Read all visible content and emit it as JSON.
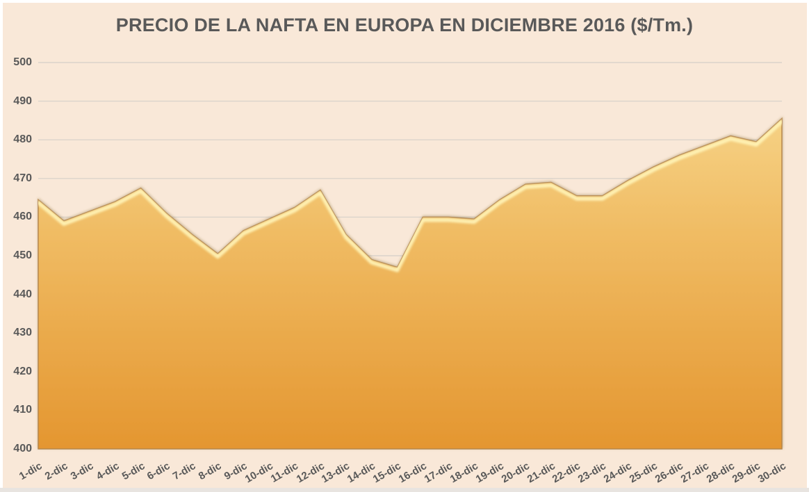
{
  "chart_data": {
    "type": "area",
    "title": "PRECIO DE LA NAFTA EN EUROPA EN DICIEMBRE 2016 ($/Tm.)",
    "categories": [
      "1-dic",
      "2-dic",
      "3-dic",
      "4-dic",
      "5-dic",
      "6-dic",
      "7-dic",
      "8-dic",
      "9-dic",
      "10-dic",
      "11-dic",
      "12-dic",
      "13-dic",
      "14-dic",
      "15-dic",
      "16-dic",
      "17-dic",
      "18-dic",
      "19-dic",
      "20-dic",
      "21-dic",
      "22-dic",
      "23-dic",
      "24-dic",
      "25-dic",
      "26-dic",
      "27-dic",
      "28-dic",
      "29-dic",
      "30-dic"
    ],
    "values": [
      464.5,
      459,
      461.5,
      464,
      467.5,
      461,
      455.5,
      450.5,
      456.5,
      459.5,
      462.5,
      467,
      455.5,
      449,
      447,
      460,
      460,
      459.5,
      464.5,
      468.5,
      469,
      465.5,
      465.5,
      469.5,
      473,
      476,
      478.5,
      481,
      479.5,
      485.5
    ],
    "xlabel": "",
    "ylabel": "",
    "ylim": [
      400,
      500
    ],
    "y_ticks": [
      500,
      490,
      480,
      470,
      460,
      450,
      440,
      430,
      420,
      410,
      400
    ],
    "grid": true,
    "legend": "none",
    "x_label_rotation_deg": -30
  },
  "colors": {
    "background": "#f9e8d8",
    "frame": "#ffffff",
    "bottom_strip": "#e8e4e0",
    "title_text": "#595959",
    "axis_text": "#595959",
    "gridline": "#dbd3cb",
    "area_top": "#f6d285",
    "area_mid": "#f0bc64",
    "area_bottom": "#e49630",
    "area_edge": "#b5854a",
    "area_highlight": "#fff4b8",
    "edge_shadow": "#7a5e2b"
  }
}
